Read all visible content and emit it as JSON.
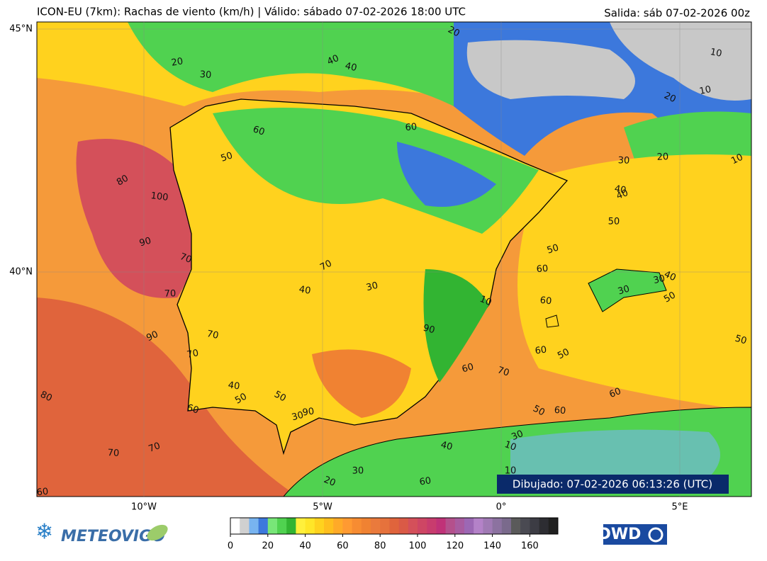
{
  "header": {
    "title": "ICON-EU (7km): Rachas de viento (km/h) | Válido: sábado 07-02-2026 18:00 UTC",
    "run": "Salida: sáb 07-02-2026 00z"
  },
  "map": {
    "lat_ticks": [
      {
        "value": 45,
        "label": "45°N"
      },
      {
        "value": 40,
        "label": "40°N"
      }
    ],
    "lon_ticks": [
      {
        "value": -10,
        "label": "10°W"
      },
      {
        "value": -5,
        "label": "5°W"
      },
      {
        "value": 0,
        "label": "0°"
      },
      {
        "value": 5,
        "label": "5°E"
      }
    ],
    "contour_labels": [
      80,
      100,
      90,
      70,
      70,
      90,
      70,
      70,
      80,
      70,
      70,
      60,
      60,
      50,
      40,
      30,
      20,
      30,
      40,
      40,
      20,
      20,
      30,
      50,
      60,
      60,
      70,
      40,
      30,
      10,
      10,
      30,
      40,
      60,
      50,
      60,
      50,
      70,
      60,
      50,
      40,
      30,
      40,
      50,
      60,
      90,
      90,
      50,
      60,
      30,
      10,
      20,
      10,
      10,
      10,
      20,
      30,
      40,
      50,
      60,
      50,
      30,
      60
    ],
    "drawn": "Dibujado: 07-02-2026 06:13:26 (UTC)"
  },
  "colorbar": {
    "lim": [
      0,
      175
    ],
    "ticks": [
      0,
      20,
      40,
      60,
      80,
      100,
      120,
      140,
      160
    ],
    "step": 5,
    "colors": [
      "#ffffff",
      "#d0d0d0",
      "#78b4f0",
      "#3c78dc",
      "#78e678",
      "#50d250",
      "#32b432",
      "#fff03c",
      "#ffe628",
      "#ffd21e",
      "#ffbe1e",
      "#ffaa28",
      "#ff9a32",
      "#f78c32",
      "#f08232",
      "#ea7a3c",
      "#e6723c",
      "#e0643c",
      "#da5a46",
      "#d4505a",
      "#ce4664",
      "#c83c6e",
      "#c03278",
      "#b4508c",
      "#a85ca0",
      "#9c68b4",
      "#b482c8",
      "#a07ab4",
      "#8c72a0",
      "#7a6a8c",
      "#5a5a5a",
      "#4a4a52",
      "#3c3c44",
      "#2d2d32",
      "#202020"
    ]
  },
  "footer": {
    "logo_left": "METEOVIGO",
    "logo_right": "DWD"
  }
}
